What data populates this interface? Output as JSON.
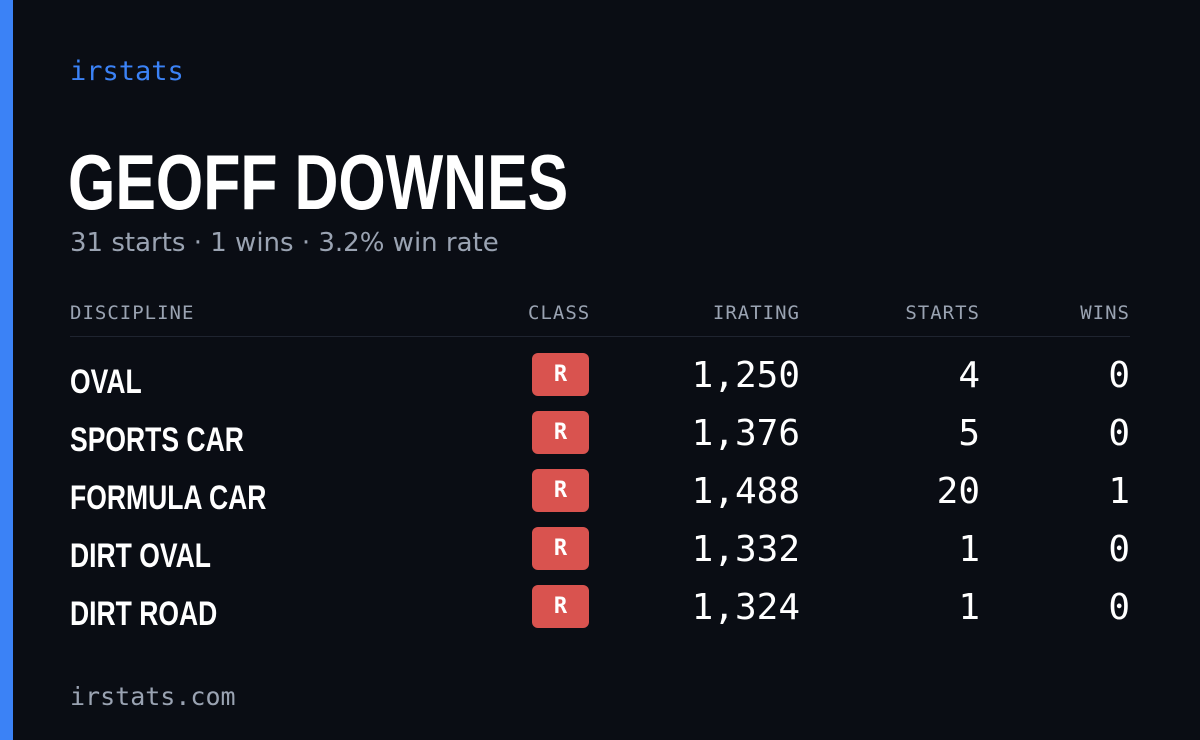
{
  "brand": "irstats",
  "driver": {
    "name": "GEOFF DOWNES",
    "summary": "31 starts · 1 wins · 3.2% win rate"
  },
  "table": {
    "headers": {
      "discipline": "DISCIPLINE",
      "class": "CLASS",
      "irating": "IRATING",
      "starts": "STARTS",
      "wins": "WINS"
    },
    "rows": [
      {
        "discipline": "OVAL",
        "class": "R",
        "irating": "1,250",
        "starts": "4",
        "wins": "0"
      },
      {
        "discipline": "SPORTS CAR",
        "class": "R",
        "irating": "1,376",
        "starts": "5",
        "wins": "0"
      },
      {
        "discipline": "FORMULA CAR",
        "class": "R",
        "irating": "1,488",
        "starts": "20",
        "wins": "1"
      },
      {
        "discipline": "DIRT OVAL",
        "class": "R",
        "irating": "1,332",
        "starts": "1",
        "wins": "0"
      },
      {
        "discipline": "DIRT ROAD",
        "class": "R",
        "irating": "1,324",
        "starts": "1",
        "wins": "0"
      }
    ]
  },
  "footer": "irstats.com",
  "colors": {
    "accent": "#3b82f6",
    "badge_r": "#d9534f",
    "background": "#0a0d14"
  }
}
